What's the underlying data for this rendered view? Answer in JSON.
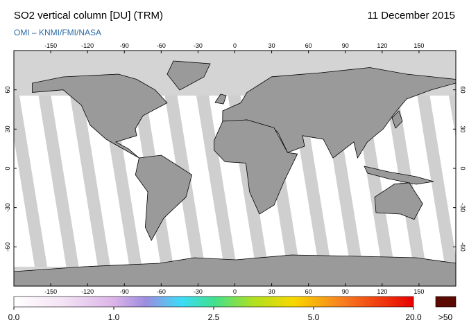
{
  "header": {
    "title": "SO2 vertical column [DU] (TRM)",
    "date": "11 December 2015",
    "credit": "OMI  –  KNMI/FMI/NASA"
  },
  "map": {
    "lon_ticks": [
      -150,
      -120,
      -90,
      -60,
      -30,
      0,
      30,
      60,
      90,
      120,
      150
    ],
    "lat_ticks": [
      60,
      30,
      0,
      -30,
      -60
    ]
  },
  "colorbar": {
    "ticks": [
      {
        "value": 0,
        "label": "0.0"
      },
      {
        "value": 1,
        "label": "1.0"
      },
      {
        "value": 2.5,
        "label": "2.5"
      },
      {
        "value": 5,
        "label": "5.0"
      },
      {
        "value": 20,
        "label": "20.0"
      }
    ],
    "overflow_label": ">50"
  }
}
